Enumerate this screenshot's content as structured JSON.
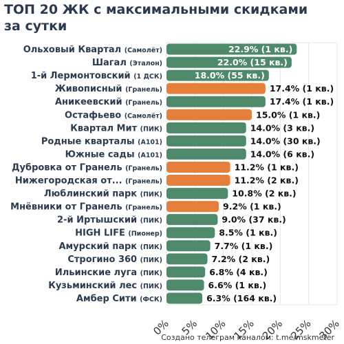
{
  "title_line1": "ТОП 20 ЖК с максимальными скидками",
  "title_line2": "за сутки",
  "footer": "Создано телеграм каналом: t.me/mskmeter",
  "colors": {
    "green": "#4e8a6a",
    "orange": "#e67f3c",
    "label": "#2b3a4e",
    "grid": "#e6e6e6"
  },
  "chart_data": {
    "type": "bar",
    "orientation": "horizontal",
    "title": "ТОП 20 ЖК с максимальными скидками за сутки",
    "xlim": [
      0,
      30
    ],
    "xticks": [
      "0%",
      "5%",
      "10%",
      "15%",
      "20%",
      "25%",
      "30%"
    ],
    "grid": true,
    "items": [
      {
        "name": "Ольховый Квартал",
        "dev": "(Самолёт)",
        "value": 22.9,
        "label": "22.9% (1 кв.)",
        "color": "green"
      },
      {
        "name": "Шагал",
        "dev": "(Эталон)",
        "value": 22.0,
        "label": "22.0% (15 кв.)",
        "color": "green"
      },
      {
        "name": "1-й Лермонтовский",
        "dev": "(1 ДСК)",
        "value": 18.0,
        "label": "18.0% (55 кв.)",
        "color": "green"
      },
      {
        "name": "Живописный",
        "dev": "(Гранель)",
        "value": 17.4,
        "label": "17.4% (1 кв.)",
        "color": "orange"
      },
      {
        "name": "Аникеевский",
        "dev": "(Гранель)",
        "value": 17.4,
        "label": "17.4% (1 кв.)",
        "color": "green"
      },
      {
        "name": "Остафьево",
        "dev": "(Самолёт)",
        "value": 15.0,
        "label": "15.0% (1 кв.)",
        "color": "orange"
      },
      {
        "name": "Квартал Мит",
        "dev": "(ПИК)",
        "value": 14.0,
        "label": "14.0% (3 кв.)",
        "color": "green"
      },
      {
        "name": "Родные кварталы",
        "dev": "(А101)",
        "value": 14.0,
        "label": "14.0% (30 кв.)",
        "color": "green"
      },
      {
        "name": "Южные сады",
        "dev": "(А101)",
        "value": 14.0,
        "label": "14.0% (6 кв.)",
        "color": "green"
      },
      {
        "name": "Дубровка от Гранель",
        "dev": "(Гранель)",
        "value": 11.2,
        "label": "11.2% (1 кв.)",
        "color": "orange"
      },
      {
        "name": "Нижегородская от...",
        "dev": "(Гранель)",
        "value": 11.2,
        "label": "11.2% (2 кв.)",
        "color": "orange"
      },
      {
        "name": "Люблинский парк",
        "dev": "(ПИК)",
        "value": 10.8,
        "label": "10.8% (2 кв.)",
        "color": "green"
      },
      {
        "name": "Мнёвники от Гранель",
        "dev": "(Гранель)",
        "value": 9.2,
        "label": "9.2% (1 кв.)",
        "color": "orange"
      },
      {
        "name": "2-й Иртышский",
        "dev": "(ПИК)",
        "value": 9.0,
        "label": "9.0% (37 кв.)",
        "color": "green"
      },
      {
        "name": "HIGH LIFE",
        "dev": "(Пионер)",
        "value": 8.5,
        "label": "8.5% (1 кв.)",
        "color": "green"
      },
      {
        "name": "Амурский парк",
        "dev": "(ПИК)",
        "value": 7.7,
        "label": "7.7% (1 кв.)",
        "color": "green"
      },
      {
        "name": "Строгино 360",
        "dev": "(ПИК)",
        "value": 7.2,
        "label": "7.2% (2 кв.)",
        "color": "green"
      },
      {
        "name": "Ильинские луга",
        "dev": "(ПИК)",
        "value": 6.8,
        "label": "6.8% (4 кв.)",
        "color": "green"
      },
      {
        "name": "Кузьминский лес",
        "dev": "(ПИК)",
        "value": 6.6,
        "label": "6.6% (1 кв.)",
        "color": "green"
      },
      {
        "name": "Амбер Сити",
        "dev": "(ФСК)",
        "value": 6.3,
        "label": "6.3% (164 кв.)",
        "color": "green"
      }
    ]
  }
}
